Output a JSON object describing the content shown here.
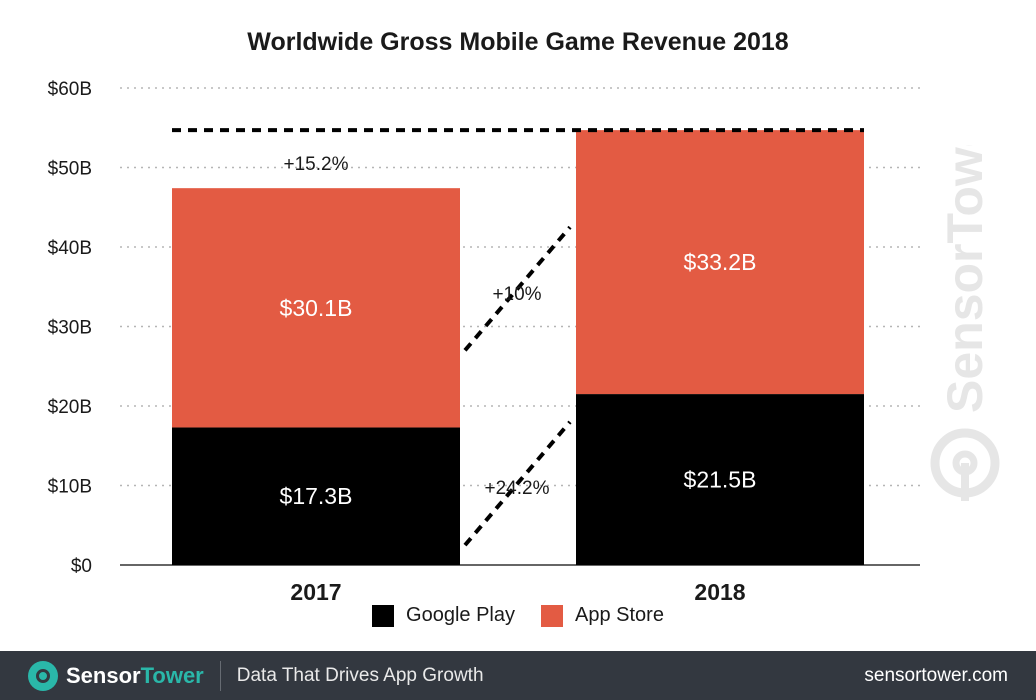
{
  "chart_data": {
    "type": "bar",
    "stacked": true,
    "title": "Worldwide Gross Mobile Game Revenue 2018",
    "categories": [
      "2017",
      "2018"
    ],
    "series": [
      {
        "name": "Google Play",
        "values": [
          17.3,
          21.5
        ],
        "labels": [
          "$17.3B",
          "$21.5B"
        ],
        "color": "#000000"
      },
      {
        "name": "App Store",
        "values": [
          30.1,
          33.2
        ],
        "labels": [
          "$30.1B",
          "$33.2B"
        ],
        "color": "#e35b43"
      }
    ],
    "ylim": [
      0,
      60
    ],
    "yticks": [
      0,
      10,
      20,
      30,
      40,
      50,
      60
    ],
    "ytick_labels": [
      "$0",
      "$10B",
      "$20B",
      "$30B",
      "$40B",
      "$50B",
      "$60B"
    ],
    "grid": true,
    "annotations": {
      "total_growth": "+15.2%",
      "app_store_growth": "+10%",
      "google_play_growth": "+24.2%"
    },
    "legend_position": "bottom"
  },
  "watermark": {
    "text": "SensorTower"
  },
  "footer": {
    "brand_part1": "Sensor",
    "brand_part2": "Tower",
    "tagline": "Data That Drives App Growth",
    "url": "sensortower.com"
  }
}
